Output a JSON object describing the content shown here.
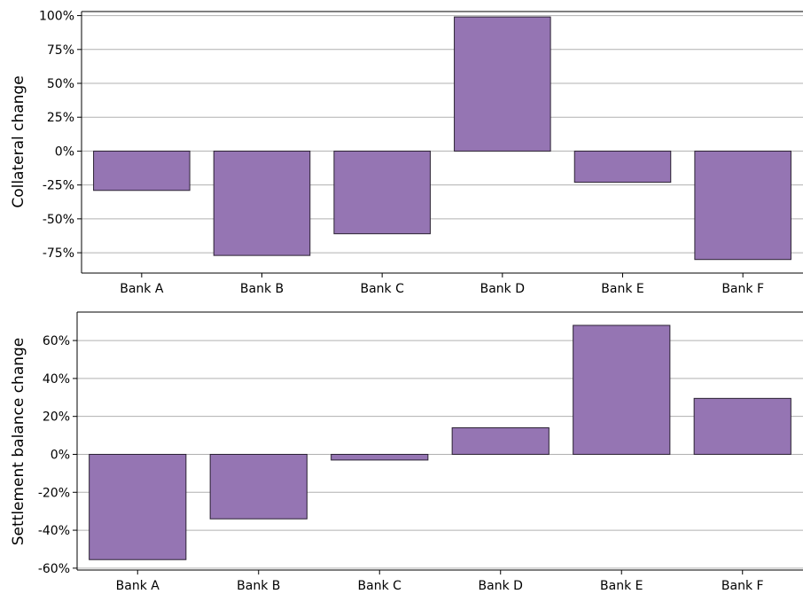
{
  "colors": {
    "bar": "#9575b3",
    "bar_edge": "#2b2233",
    "grid": "#b0b0b0",
    "axis": "#000000"
  },
  "chart_data": [
    {
      "type": "bar",
      "categories": [
        "Bank A",
        "Bank B",
        "Bank C",
        "Bank D",
        "Bank E",
        "Bank F"
      ],
      "values": [
        -29,
        -77,
        -61,
        99,
        -23,
        -80
      ],
      "ylabel": "Collateral change",
      "ylim": [
        -90,
        103
      ],
      "yticks": [
        100,
        75,
        50,
        25,
        0,
        -25,
        -50,
        -75
      ],
      "ytick_labels": [
        "100%",
        "75%",
        "50%",
        "25%",
        "0%",
        "-25%",
        "-50%",
        "-75%"
      ],
      "grid": "horizontal"
    },
    {
      "type": "bar",
      "categories": [
        "Bank A",
        "Bank B",
        "Bank C",
        "Bank D",
        "Bank E",
        "Bank F"
      ],
      "values": [
        -55.5,
        -34,
        -3,
        14,
        68,
        29.5
      ],
      "ylabel": "Settlement balance change",
      "ylim": [
        -61,
        75
      ],
      "yticks": [
        60,
        40,
        20,
        0,
        -20,
        -40,
        -60
      ],
      "ytick_labels": [
        "60%",
        "40%",
        "20%",
        "0%",
        "-20%",
        "-40%",
        "-60%"
      ],
      "grid": "horizontal"
    }
  ]
}
